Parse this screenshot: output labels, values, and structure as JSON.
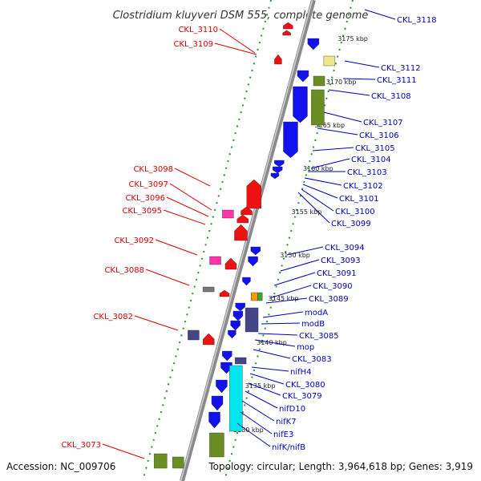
{
  "title": "Clostridium kluyveri DSM 555, complete genome",
  "accession": "Accession: NC_009706",
  "summary": "Topology: circular; Length: 3,964,618 bp; Genes: 3,919",
  "colors": {
    "left_label": "#dd0000",
    "right_label": "#0000bb",
    "backbone": "#888888",
    "dots": "#229922",
    "forward_gene": "#ee1111",
    "reverse_gene": "#1111ee"
  },
  "kbp_ticks": [
    "3175 kbp",
    "3170 kbp",
    "3165 kbp",
    "3160 kbp",
    "3155 kbp",
    "3150 kbp",
    "3145 kbp",
    "3140 kbp",
    "3135 kbp",
    "3130 kbp"
  ],
  "left_labels": [
    "CKL_3110",
    "CKL_3109",
    "CKL_3098",
    "CKL_3097",
    "CKL_3096",
    "CKL_3095",
    "CKL_3092",
    "CKL_3088",
    "CKL_3082",
    "CKL_3073"
  ],
  "right_labels": [
    "CKL_3118",
    "CKL_3112",
    "CKL_3111",
    "CKL_3108",
    "CKL_3107",
    "CKL_3106",
    "CKL_3105",
    "CKL_3104",
    "CKL_3103",
    "CKL_3102",
    "CKL_3101",
    "CKL_3100",
    "CKL_3099",
    "CKL_3094",
    "CKL_3093",
    "CKL_3091",
    "CKL_3090",
    "CKL_3089",
    "modA",
    "modB",
    "CKL_3085",
    "mop",
    "CKL_3083",
    "nifH4",
    "CKL_3080",
    "CKL_3079",
    "nifD10",
    "nifK7",
    "nifE3",
    "nifK/nifB"
  ]
}
